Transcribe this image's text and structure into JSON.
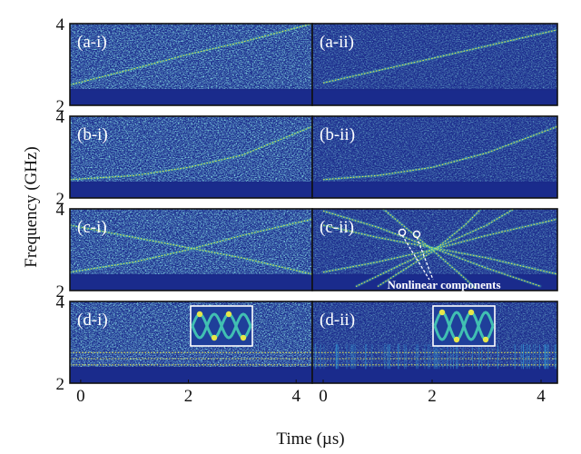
{
  "figure": {
    "xlabel": "Time (µs)",
    "ylabel": "Frequency (GHz)",
    "annotation": "Nonlinear components"
  },
  "colors": {
    "background": "#1b2a8a",
    "noise_mid": "#2f8fcf",
    "noise_high": "#41c0b2",
    "signal": "#e6e64a",
    "frame": "#111111",
    "label": "#ffffff"
  },
  "chart_data": [
    {
      "type": "heatmap",
      "panel": "(a-i)",
      "xlim": [
        -0.2,
        4.3
      ],
      "ylim": [
        2,
        4
      ],
      "xticks": [
        0,
        2,
        4
      ],
      "yticks": [
        2,
        4
      ],
      "noise": "high",
      "signals": [
        [
          [
            -0.2,
            2.5
          ],
          [
            1,
            2.9
          ],
          [
            2,
            3.25
          ],
          [
            3,
            3.55
          ],
          [
            4.3,
            4.0
          ]
        ]
      ]
    },
    {
      "type": "heatmap",
      "panel": "(a-ii)",
      "xlim": [
        -0.2,
        4.3
      ],
      "ylim": [
        2,
        4
      ],
      "xticks": [
        0,
        2,
        4
      ],
      "yticks": [
        2,
        4
      ],
      "noise": "low",
      "signals": [
        [
          [
            0,
            2.55
          ],
          [
            1,
            2.85
          ],
          [
            2,
            3.15
          ],
          [
            3,
            3.45
          ],
          [
            4.3,
            3.85
          ]
        ]
      ]
    },
    {
      "type": "heatmap",
      "panel": "(b-i)",
      "xlim": [
        -0.2,
        4.3
      ],
      "ylim": [
        2,
        4
      ],
      "xticks": [
        0,
        2,
        4
      ],
      "yticks": [
        2,
        4
      ],
      "noise": "high",
      "signals": [
        [
          [
            -0.2,
            2.45
          ],
          [
            1,
            2.55
          ],
          [
            2,
            2.75
          ],
          [
            3,
            3.05
          ],
          [
            4.3,
            3.75
          ]
        ]
      ]
    },
    {
      "type": "heatmap",
      "panel": "(b-ii)",
      "xlim": [
        -0.2,
        4.3
      ],
      "ylim": [
        2,
        4
      ],
      "xticks": [
        0,
        2,
        4
      ],
      "yticks": [
        2,
        4
      ],
      "noise": "low",
      "signals": [
        [
          [
            0,
            2.45
          ],
          [
            1,
            2.55
          ],
          [
            2,
            2.75
          ],
          [
            3,
            3.1
          ],
          [
            4.3,
            3.75
          ]
        ]
      ]
    },
    {
      "type": "heatmap",
      "panel": "(c-i)",
      "xlim": [
        -0.2,
        4.3
      ],
      "ylim": [
        2,
        4
      ],
      "xticks": [
        0,
        2,
        4
      ],
      "yticks": [
        2,
        4
      ],
      "noise": "high",
      "signals": [
        [
          [
            -0.2,
            2.45
          ],
          [
            1,
            2.7
          ],
          [
            2,
            3.0
          ],
          [
            3,
            3.35
          ],
          [
            4.3,
            3.75
          ]
        ],
        [
          [
            -0.2,
            3.6
          ],
          [
            1,
            3.3
          ],
          [
            2,
            3.05
          ],
          [
            3,
            2.8
          ],
          [
            4.3,
            2.4
          ]
        ]
      ]
    },
    {
      "type": "heatmap",
      "panel": "(c-ii)",
      "xlim": [
        -0.2,
        4.3
      ],
      "ylim": [
        2,
        4
      ],
      "xticks": [
        0,
        2,
        4
      ],
      "yticks": [
        2,
        4
      ],
      "noise": "low",
      "signals": [
        [
          [
            0,
            2.45
          ],
          [
            1,
            2.7
          ],
          [
            2,
            3.0
          ],
          [
            3,
            3.35
          ],
          [
            4.3,
            3.75
          ]
        ],
        [
          [
            0,
            3.6
          ],
          [
            1,
            3.3
          ],
          [
            2,
            3.05
          ],
          [
            3,
            2.8
          ],
          [
            4.3,
            2.4
          ]
        ],
        [
          [
            0,
            3.95
          ],
          [
            1,
            3.55
          ],
          [
            2,
            3.05
          ],
          [
            3,
            2.55
          ],
          [
            4.0,
            2.1
          ]
        ],
        [
          [
            0.6,
            2.1
          ],
          [
            1.3,
            2.55
          ],
          [
            2,
            3.0
          ],
          [
            3,
            3.6
          ],
          [
            3.5,
            4.0
          ]
        ],
        [
          [
            1.0,
            2.1
          ],
          [
            2,
            2.95
          ],
          [
            2.6,
            3.6
          ],
          [
            2.9,
            4.0
          ]
        ],
        [
          [
            1.1,
            4.0
          ],
          [
            2,
            3.0
          ],
          [
            2.6,
            2.3
          ],
          [
            2.8,
            2.05
          ]
        ]
      ]
    },
    {
      "type": "heatmap",
      "panel": "(d-i)",
      "xlim": [
        -0.2,
        4.3
      ],
      "ylim": [
        2,
        4
      ],
      "xticks": [
        0,
        2,
        4
      ],
      "yticks": [
        2,
        4
      ],
      "noise": "high",
      "signals": [
        [
          [
            -0.2,
            2.75
          ],
          [
            4.3,
            2.75
          ]
        ],
        [
          [
            -0.2,
            2.6
          ],
          [
            4.3,
            2.6
          ]
        ],
        [
          [
            -0.2,
            2.45
          ],
          [
            4.3,
            2.45
          ]
        ]
      ]
    },
    {
      "type": "heatmap",
      "panel": "(d-ii)",
      "xlim": [
        -0.2,
        4.3
      ],
      "ylim": [
        2,
        4
      ],
      "xticks": [
        0,
        2,
        4
      ],
      "yticks": [
        2,
        4
      ],
      "noise": "low",
      "signals": [
        [
          [
            -0.2,
            2.75
          ],
          [
            4.3,
            2.75
          ]
        ],
        [
          [
            -0.2,
            2.6
          ],
          [
            4.3,
            2.6
          ]
        ],
        [
          [
            -0.2,
            2.45
          ],
          [
            4.3,
            2.45
          ]
        ]
      ]
    }
  ]
}
